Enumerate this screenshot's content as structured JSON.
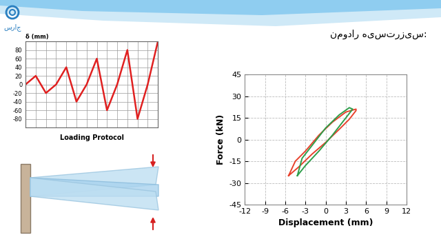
{
  "header": {
    "title": "نمودار هیسترزیس:",
    "logo": "سراج"
  },
  "chart_data": [
    {
      "type": "line",
      "xlabel": "Loading Protocol",
      "ylabel": "δ (mm)",
      "x": [
        0,
        1,
        2,
        3,
        4,
        5,
        6,
        7,
        8,
        9,
        10,
        11,
        12,
        13
      ],
      "values": [
        0,
        20,
        -20,
        0,
        40,
        -40,
        0,
        60,
        -60,
        0,
        80,
        -80,
        0,
        100
      ],
      "color": "#e02020",
      "xlim": [
        0,
        13
      ],
      "ylim": [
        -100,
        100
      ],
      "yticks": [
        -80,
        -60,
        -40,
        -20,
        0,
        20,
        40,
        60,
        80
      ],
      "grid": true,
      "tick_labels": "y"
    },
    {
      "type": "line",
      "xlabel": "Displacement (mm)",
      "ylabel": "Force (kN)",
      "xlim": [
        -12,
        12
      ],
      "xticks": [
        -12,
        -9,
        -6,
        -3,
        0,
        3,
        6,
        9,
        12
      ],
      "ylim": [
        -45,
        45
      ],
      "yticks": [
        -45,
        -30,
        -15,
        0,
        15,
        30,
        45
      ],
      "grid": true,
      "series": [
        {
          "color": "#e8412c",
          "x": [
            -5.5,
            -4,
            -2,
            0,
            2,
            3.5,
            4.5,
            4.5,
            3,
            1,
            -1,
            -3,
            -4.5,
            -5.5
          ],
          "values": [
            -25,
            -19,
            -10,
            -2,
            7,
            14,
            20,
            21,
            19,
            12,
            3,
            -8,
            -15,
            -25
          ]
        },
        {
          "color": "#2e9e4a",
          "x": [
            -4.2,
            -3,
            -1,
            1,
            2.5,
            4,
            3.5,
            2,
            0,
            -2,
            -3.5,
            -4.2
          ],
          "values": [
            -25,
            -18,
            -8,
            3,
            12,
            21,
            22,
            17,
            8,
            -4,
            -13,
            -25
          ]
        }
      ]
    }
  ]
}
